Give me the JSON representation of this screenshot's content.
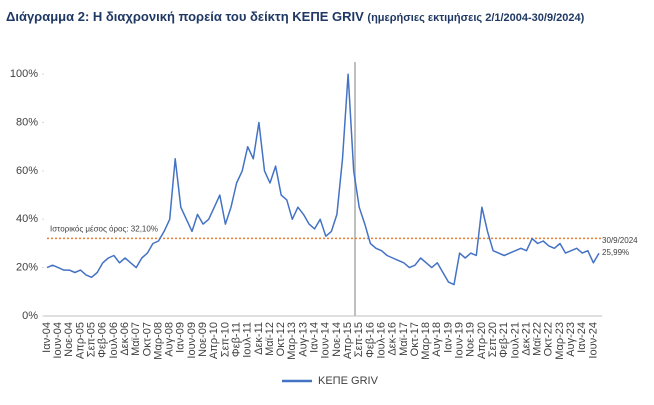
{
  "chart_data": {
    "type": "line",
    "title": "Διάγραμμα 2: Η διαχρονική πορεία του δείκτη ΚΕΠΕ GRIV",
    "subtitle": "(ημερήσιες εκτιμήσεις 2/1/2004-30/9/2024)",
    "categories": [
      "Ιαν-04",
      null,
      "Ιουν-04",
      null,
      "Νοε-04",
      null,
      "Απρ-05",
      null,
      "Σεπ-05",
      null,
      "Φεβ-06",
      null,
      "Ιουλ-06",
      null,
      "Δεκ-06",
      null,
      "Μαϊ-07",
      null,
      "Οκτ-07",
      null,
      "Μαρ-08",
      null,
      "Αυγ-08",
      null,
      "Ιαν-09",
      null,
      "Ιουν-09",
      null,
      "Νοε-09",
      null,
      "Απρ-10",
      null,
      "Σεπ-10",
      null,
      "Φεβ-11",
      null,
      "Ιουλ-11",
      null,
      "Δεκ-11",
      null,
      "Μαϊ-12",
      null,
      "Οκτ-12",
      null,
      "Μαρ-13",
      null,
      "Αυγ-13",
      null,
      "Ιαν-14",
      null,
      "Ιουν-14",
      null,
      "Νοε-14",
      null,
      "Απρ-15",
      null,
      "Σεπ-15",
      null,
      "Φεβ-16",
      null,
      "Ιουλ-16",
      null,
      "Δεκ-16",
      null,
      "Μαϊ-17",
      null,
      "Οκτ-17",
      null,
      "Μαρ-18",
      null,
      "Αυγ-18",
      null,
      "Ιαν-19",
      null,
      "Ιουν-19",
      null,
      "Νοε-19",
      null,
      "Απρ-20",
      null,
      "Σεπ-20",
      null,
      "Φεβ-21",
      null,
      "Ιουλ-21",
      null,
      "Δεκ-21",
      null,
      "Μαϊ-22",
      null,
      "Οκτ-22",
      null,
      "Μαρ-23",
      null,
      "Αυγ-23",
      null,
      "Ιαν-24",
      null,
      "Ιουν-24",
      null
    ],
    "series": [
      {
        "name": "ΚΕΠΕ GRIV",
        "color": "#4472c4",
        "values": [
          20,
          21,
          20,
          19,
          19,
          18,
          19,
          17,
          16,
          18,
          22,
          24,
          25,
          22,
          24,
          22,
          20,
          24,
          26,
          30,
          31,
          35,
          40,
          65,
          45,
          40,
          35,
          42,
          38,
          40,
          45,
          50,
          38,
          45,
          55,
          60,
          70,
          65,
          80,
          60,
          55,
          62,
          50,
          48,
          40,
          45,
          42,
          38,
          36,
          40,
          33,
          35,
          42,
          65,
          100,
          60,
          45,
          38,
          30,
          28,
          27,
          25,
          24,
          23,
          22,
          20,
          21,
          24,
          22,
          20,
          22,
          18,
          14,
          13,
          26,
          24,
          26,
          25,
          45,
          35,
          27,
          26,
          25,
          26,
          27,
          28,
          27,
          32,
          30,
          31,
          29,
          28,
          30,
          26,
          27,
          28,
          26,
          27,
          22,
          25.99
        ]
      }
    ],
    "ylim": [
      0,
      110
    ],
    "yticks": [
      {
        "value": 0,
        "label": "0%"
      },
      {
        "value": 20,
        "label": "20%"
      },
      {
        "value": 40,
        "label": "40%"
      },
      {
        "value": 60,
        "label": "60%"
      },
      {
        "value": 80,
        "label": "80%"
      },
      {
        "value": 100,
        "label": "100%"
      }
    ],
    "mean": {
      "value": 32.1,
      "label": "Ιστορικός μέσος όρος: 32,10%",
      "color": "#ed7d31"
    },
    "end_annotation": {
      "date": "30/9/2024",
      "label": "25,99%"
    },
    "legend": "bottom"
  }
}
